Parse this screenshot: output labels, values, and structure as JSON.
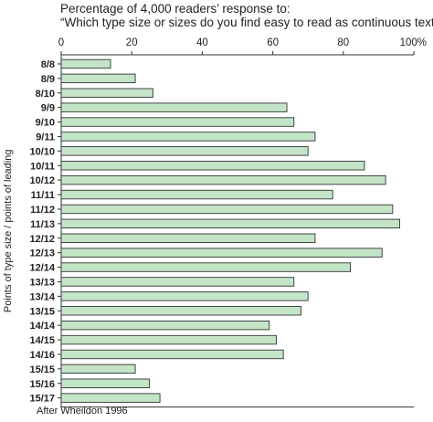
{
  "chart_data": {
    "type": "bar",
    "orientation": "horizontal",
    "title": "Percentage of 4,000 readers’ response to:",
    "subtitle": "“Which type size or sizes do you find easy to read as continuous text?”",
    "xlabel": "",
    "ylabel": "Points of type size / points of leading",
    "xlim": [
      0,
      100
    ],
    "x_ticks": [
      "0",
      "20",
      "40",
      "60",
      "80",
      "100%"
    ],
    "grid": false,
    "categories": [
      "8/8",
      "8/9",
      "8/10",
      "9/9",
      "9/10",
      "9/11",
      "10/10",
      "10/11",
      "10/12",
      "11/11",
      "11/12",
      "11/13",
      "12/12",
      "12/13",
      "12/14",
      "13/13",
      "13/14",
      "13/15",
      "14/14",
      "14/15",
      "14/16",
      "15/15",
      "15/16",
      "15/17"
    ],
    "values": [
      14,
      21,
      26,
      64,
      66,
      72,
      70,
      86,
      92,
      77,
      94,
      96,
      72,
      91,
      82,
      66,
      70,
      68,
      59,
      61,
      63,
      21,
      25,
      28
    ],
    "bar_color": "#c4e4c8",
    "bar_edge_color": "#333333",
    "source": "After Wheildon 1996"
  }
}
